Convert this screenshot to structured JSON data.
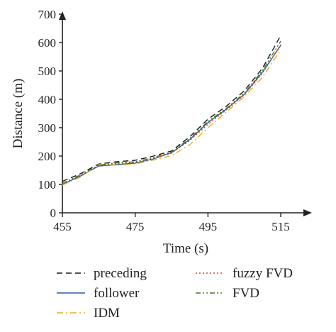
{
  "chart_data": {
    "type": "line",
    "xlabel": "Time (s)",
    "ylabel": "Distance (m)",
    "xlim": [
      455,
      522
    ],
    "ylim": [
      0,
      700
    ],
    "xticks": [
      "455",
      "475",
      "495",
      "515"
    ],
    "yticks": [
      "0",
      "100",
      "200",
      "300",
      "400",
      "500",
      "600",
      "700"
    ],
    "grid": false,
    "legend_position": "bottom",
    "series": [
      {
        "name": "preceding",
        "color": "#1a1a1a",
        "dash": "long-dash",
        "points": [
          [
            455,
            111
          ],
          [
            460,
            138
          ],
          [
            465,
            172
          ],
          [
            470,
            180
          ],
          [
            475,
            185
          ],
          [
            480,
            200
          ],
          [
            485,
            218
          ],
          [
            490,
            268
          ],
          [
            495,
            330
          ],
          [
            500,
            375
          ],
          [
            505,
            430
          ],
          [
            510,
            510
          ],
          [
            515,
            625
          ]
        ]
      },
      {
        "name": "follower",
        "color": "#2f5f9e",
        "dash": "solid",
        "points": [
          [
            455,
            100
          ],
          [
            460,
            130
          ],
          [
            465,
            165
          ],
          [
            470,
            170
          ],
          [
            475,
            175
          ],
          [
            480,
            190
          ],
          [
            485,
            212
          ],
          [
            490,
            258
          ],
          [
            495,
            318
          ],
          [
            500,
            365
          ],
          [
            505,
            418
          ],
          [
            510,
            496
          ],
          [
            515,
            590
          ]
        ]
      },
      {
        "name": "IDM",
        "color": "#e0b030",
        "dash": "dash-dot",
        "points": [
          [
            455,
            98
          ],
          [
            460,
            126
          ],
          [
            465,
            170
          ],
          [
            470,
            168
          ],
          [
            475,
            172
          ],
          [
            480,
            186
          ],
          [
            485,
            202
          ],
          [
            490,
            240
          ],
          [
            495,
            300
          ],
          [
            500,
            355
          ],
          [
            505,
            410
          ],
          [
            510,
            478
          ],
          [
            515,
            575
          ]
        ]
      },
      {
        "name": "fuzzy FVD",
        "color": "#d9431e",
        "dash": "dotted",
        "points": [
          [
            455,
            103
          ],
          [
            460,
            133
          ],
          [
            465,
            167
          ],
          [
            470,
            174
          ],
          [
            475,
            178
          ],
          [
            480,
            192
          ],
          [
            485,
            210
          ],
          [
            490,
            255
          ],
          [
            495,
            312
          ],
          [
            500,
            362
          ],
          [
            505,
            416
          ],
          [
            510,
            492
          ],
          [
            515,
            593
          ]
        ]
      },
      {
        "name": "FVD",
        "color": "#4a7a2a",
        "dash": "dash-dot-dot",
        "points": [
          [
            455,
            104
          ],
          [
            460,
            134
          ],
          [
            465,
            168
          ],
          [
            470,
            176
          ],
          [
            475,
            180
          ],
          [
            480,
            195
          ],
          [
            485,
            214
          ],
          [
            490,
            262
          ],
          [
            495,
            322
          ],
          [
            500,
            368
          ],
          [
            505,
            422
          ],
          [
            510,
            502
          ],
          [
            515,
            605
          ]
        ]
      }
    ]
  }
}
